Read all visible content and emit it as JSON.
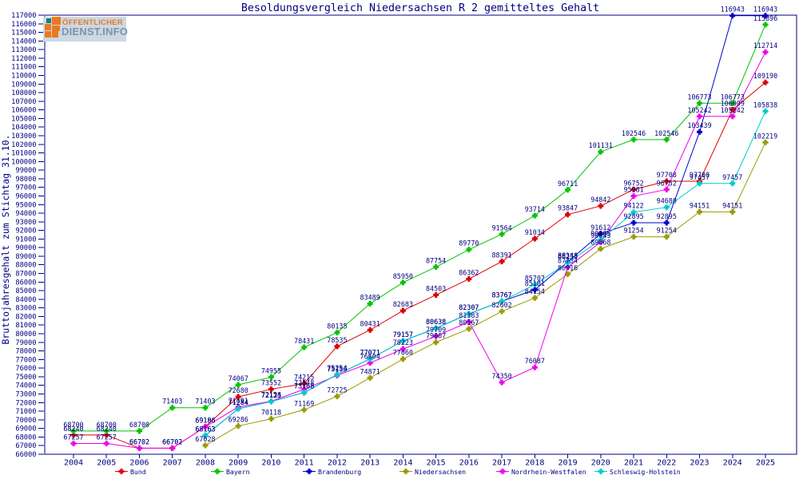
{
  "logo": {
    "line1": "ÖFFENTLICHER",
    "line2": "DIENST.INFO"
  },
  "title": "Besoldungsvergleich Niedersachsen R 2 gemitteltes Gehalt",
  "y_axis_title": "Bruttojahresgehalt zum Stichtag 31.10.",
  "chart_data": {
    "type": "line",
    "x": [
      2004,
      2005,
      2006,
      2007,
      2008,
      2009,
      2010,
      2011,
      2012,
      2013,
      2014,
      2015,
      2016,
      2017,
      2018,
      2019,
      2020,
      2021,
      2022,
      2023,
      2024,
      2025
    ],
    "ylim": [
      66000,
      117000
    ],
    "ytick_step": 1000,
    "grid": false,
    "legend_position": "bottom",
    "point_labels": true,
    "text_color": "#000080",
    "series": [
      {
        "name": "Bund",
        "color": "#dd0000",
        "values": [
          68240,
          68240,
          66702,
          66702,
          69196,
          72680,
          73552,
          74215,
          78535,
          80431,
          82683,
          84503,
          86362,
          88391,
          91034,
          93847,
          94842,
          96752,
          97708,
          97708,
          106009,
          109190
        ]
      },
      {
        "name": "Bayern",
        "color": "#00c400",
        "values": [
          68700,
          68700,
          68700,
          71403,
          71403,
          74067,
          74955,
          78431,
          80135,
          83489,
          85950,
          87754,
          89770,
          91564,
          93714,
          96711,
          101131,
          102546,
          102546,
          106773,
          106773,
          115896
        ]
      },
      {
        "name": "Brandenburg",
        "color": "#0000cc",
        "values": [
          null,
          null,
          null,
          null,
          68163,
          71284,
          72125,
          73168,
          75254,
          77071,
          79157,
          80638,
          82307,
          83767,
          85101,
          88348,
          91612,
          92895,
          92895,
          103439,
          116943,
          116943
        ]
      },
      {
        "name": "Niedersachsen",
        "color": "#9a9a00",
        "values": [
          null,
          null,
          null,
          null,
          67028,
          69286,
          70118,
          71169,
          72725,
          74871,
          77060,
          79007,
          80567,
          82602,
          84154,
          86916,
          89868,
          91254,
          91254,
          94151,
          94151,
          102219
        ]
      },
      {
        "name": "Nordrhein-Westfalen",
        "color": "#ee00ee",
        "values": [
          67257,
          67257,
          66702,
          66702,
          69186,
          71491,
          72154,
          73548,
          75150,
          76604,
          78223,
          79709,
          81383,
          74350,
          76087,
          87734,
          90643,
          95981,
          96752,
          105242,
          105242,
          112714
        ]
      },
      {
        "name": "Schleswig-Holstein",
        "color": "#00cccc",
        "values": [
          null,
          null,
          null,
          null,
          68163,
          71284,
          72125,
          73168,
          75254,
          77071,
          79157,
          80638,
          82307,
          83767,
          85707,
          88253,
          90905,
          94122,
          94680,
          97457,
          97457,
          105838
        ]
      }
    ]
  }
}
